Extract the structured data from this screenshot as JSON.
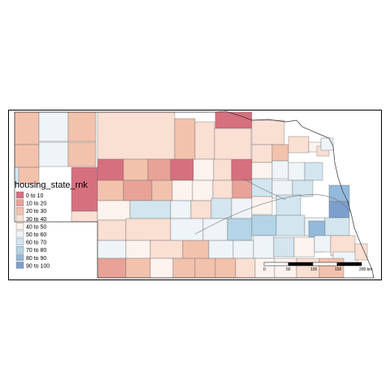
{
  "legend": {
    "title": "housing_state_rnk",
    "items": [
      {
        "label": "0 to 10",
        "color": "#d6707f"
      },
      {
        "label": "10 to 20",
        "color": "#e8a297"
      },
      {
        "label": "20 to 30",
        "color": "#f3c2ad"
      },
      {
        "label": "30 to 40",
        "color": "#fadfd3"
      },
      {
        "label": "40 to 50",
        "color": "#fdf3ee"
      },
      {
        "label": "50 to 60",
        "color": "#eef4f8"
      },
      {
        "label": "60 to 70",
        "color": "#d3e6f0"
      },
      {
        "label": "70 to 80",
        "color": "#b4d4e7"
      },
      {
        "label": "80 to 90",
        "color": "#93b9dc"
      },
      {
        "label": "90 to 100",
        "color": "#7d9fce"
      }
    ]
  },
  "scale_bar": {
    "ticks": [
      "0",
      "50",
      "100",
      "150",
      "200 km"
    ]
  },
  "counties": [
    {
      "band": 2
    },
    {
      "band": 5
    },
    {
      "band": 2
    },
    {
      "band": 3
    },
    {
      "band": 2
    },
    {
      "band": 3
    },
    {
      "band": 0
    },
    {
      "band": 3
    },
    {
      "band": 2
    },
    {
      "band": 5
    },
    {
      "band": 2
    },
    {
      "band": 3
    },
    {
      "band": 3
    },
    {
      "band": 2
    },
    {
      "band": 3
    },
    {
      "band": 4
    },
    {
      "band": 3
    },
    {
      "band": 5
    },
    {
      "band": 2
    },
    {
      "band": 6
    },
    {
      "band": 0
    },
    {
      "band": 0
    },
    {
      "band": 2
    },
    {
      "band": 1
    },
    {
      "band": 0
    },
    {
      "band": 4
    },
    {
      "band": 3
    },
    {
      "band": 0
    },
    {
      "band": 4
    },
    {
      "band": 5
    },
    {
      "band": 5
    },
    {
      "band": 6
    },
    {
      "band": 2
    },
    {
      "band": 1
    },
    {
      "band": 2
    },
    {
      "band": 4
    },
    {
      "band": 4
    },
    {
      "band": 3
    },
    {
      "band": 1
    },
    {
      "band": 6
    },
    {
      "band": 5
    },
    {
      "band": 6
    },
    {
      "band": 8
    },
    {
      "band": 3
    },
    {
      "band": 4
    },
    {
      "band": 6
    },
    {
      "band": 5
    },
    {
      "band": 3
    },
    {
      "band": 6
    },
    {
      "band": 5
    },
    {
      "band": 4
    },
    {
      "band": 6
    },
    {
      "band": 9
    },
    {
      "band": 3
    },
    {
      "band": 3
    },
    {
      "band": 5
    },
    {
      "band": 5
    },
    {
      "band": 7
    },
    {
      "band": 7
    },
    {
      "band": 6
    },
    {
      "band": 5
    },
    {
      "band": 8
    },
    {
      "band": 6
    },
    {
      "band": 5
    },
    {
      "band": 4
    },
    {
      "band": 3
    },
    {
      "band": 2
    },
    {
      "band": 5
    },
    {
      "band": 5
    },
    {
      "band": 5
    },
    {
      "band": 6
    },
    {
      "band": 4
    },
    {
      "band": 5
    },
    {
      "band": 3
    },
    {
      "band": 5
    },
    {
      "band": 3
    },
    {
      "band": 1
    },
    {
      "band": 2
    },
    {
      "band": 4
    },
    {
      "band": 2
    },
    {
      "band": 2
    },
    {
      "band": 2
    },
    {
      "band": 3
    },
    {
      "band": 4
    },
    {
      "band": 4
    },
    {
      "band": 3
    },
    {
      "band": 2
    }
  ]
}
